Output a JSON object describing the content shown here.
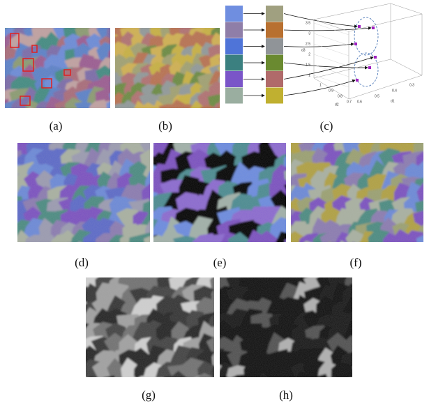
{
  "panels": [
    {
      "label": "(a)"
    },
    {
      "label": "(b)"
    },
    {
      "label": "(c)"
    },
    {
      "label": "(d)"
    },
    {
      "label": "(e)"
    },
    {
      "label": "(f)"
    },
    {
      "label": "(g)"
    },
    {
      "label": "(h)"
    }
  ],
  "plot3d": {
    "z_ticks": [
      "3.5",
      "3",
      "2.5",
      "2",
      "1.5",
      "1"
    ],
    "d2_ticks": [
      "1",
      "0.9",
      "0.8",
      "0.7"
    ],
    "d1_ticks": [
      "0.6",
      "0.5",
      "0.4",
      "0.3"
    ],
    "z_label": "d3",
    "d2_label": "d2",
    "d1_label": "d1"
  }
}
